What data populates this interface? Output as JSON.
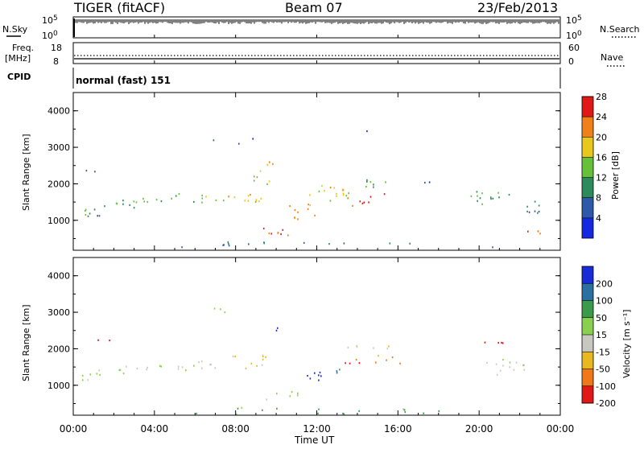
{
  "header": {
    "station": "TIGER (fitACF)",
    "beam": "Beam 07",
    "date": "23/Feb/2013"
  },
  "strip_labels": {
    "nsky": "N.Sky",
    "nsky_top": "10^5",
    "nsky_bottom": "10^0",
    "nsearch": "N.Search",
    "nsearch_top": "10^5",
    "nsearch_bottom": "10^0",
    "freq": "Freq.",
    "freq_unit": "[MHz]",
    "freq_top": "18",
    "freq_bottom": "8",
    "nave": "Nave",
    "nave_top": "60",
    "nave_bottom": "0",
    "cpid": "CPID",
    "cpid_value": "normal (fast) 151"
  },
  "chart_data": [
    {
      "type": "heatmap",
      "name": "power",
      "ylabel": "Slant Range [km]",
      "yticks": [
        "1000",
        "2000",
        "3000",
        "4000"
      ],
      "ylim": [
        180,
        4500
      ],
      "colorbar_label": "Power [dB]",
      "colorbar_ticks": [
        "4",
        "8",
        "12",
        "16",
        "20",
        "24",
        "28"
      ],
      "colorbar_colors": [
        "#1528e0",
        "#2c5aa8",
        "#2e8a5c",
        "#66c03a",
        "#e8c81c",
        "#f0801a",
        "#e01818"
      ],
      "blobs": [
        {
          "t": 1.2,
          "r": 1300,
          "dt": 1.4,
          "dr": 250,
          "v": 10,
          "dens": 0.9
        },
        {
          "t": 3.0,
          "r": 1550,
          "dt": 2.0,
          "dr": 220,
          "v": 12,
          "dens": 0.85
        },
        {
          "t": 5.8,
          "r": 1600,
          "dt": 2.2,
          "dr": 200,
          "v": 14,
          "dens": 0.9
        },
        {
          "t": 8.6,
          "r": 1650,
          "dt": 1.6,
          "dr": 250,
          "v": 18,
          "dens": 0.9
        },
        {
          "t": 9.3,
          "r": 2250,
          "dt": 1.0,
          "dr": 300,
          "v": 16,
          "dens": 0.7
        },
        {
          "t": 9.8,
          "r": 2550,
          "dt": 0.6,
          "dr": 200,
          "v": 20,
          "dens": 0.7
        },
        {
          "t": 10.2,
          "r": 650,
          "dt": 1.4,
          "dr": 200,
          "v": 24,
          "dens": 0.95
        },
        {
          "t": 11.3,
          "r": 1200,
          "dt": 1.0,
          "dr": 400,
          "v": 22,
          "dens": 0.8
        },
        {
          "t": 12.8,
          "r": 1800,
          "dt": 1.8,
          "dr": 350,
          "v": 18,
          "dens": 0.85
        },
        {
          "t": 14.2,
          "r": 1600,
          "dt": 1.2,
          "dr": 250,
          "v": 26,
          "dens": 0.9
        },
        {
          "t": 15.3,
          "r": 2050,
          "dt": 2.2,
          "dr": 150,
          "v": 12,
          "dens": 0.7
        },
        {
          "t": 17.6,
          "r": 2050,
          "dt": 1.0,
          "dr": 120,
          "v": 8,
          "dens": 0.5
        },
        {
          "t": 20.5,
          "r": 1650,
          "dt": 1.6,
          "dr": 350,
          "v": 12,
          "dens": 0.8
        },
        {
          "t": 22.8,
          "r": 1300,
          "dt": 1.2,
          "dr": 350,
          "v": 8,
          "dens": 0.6
        },
        {
          "t": 22.6,
          "r": 700,
          "dt": 1.0,
          "dr": 150,
          "v": 24,
          "dens": 0.9
        },
        {
          "t": 0.8,
          "r": 2400,
          "dt": 0.8,
          "dr": 200,
          "v": 6,
          "dens": 0.5
        },
        {
          "t": 8.0,
          "r": 3200,
          "dt": 3.0,
          "dr": 250,
          "v": 4,
          "dens": 0.12
        },
        {
          "t": 14.5,
          "r": 3500,
          "dt": 1.0,
          "dr": 120,
          "v": 4,
          "dens": 0.3
        },
        {
          "t": 12.0,
          "r": 350,
          "dt": 12.0,
          "dr": 120,
          "v": 8,
          "dens": 0.35
        }
      ]
    },
    {
      "type": "heatmap",
      "name": "velocity",
      "ylabel": "Slant Range [km]",
      "yticks": [
        "1000",
        "2000",
        "3000",
        "4000"
      ],
      "ylim": [
        180,
        4500
      ],
      "colorbar_label": "Velocity [m s⁻¹]",
      "colorbar_ticks": [
        "200",
        "100",
        "50",
        "15",
        "-15",
        "-50",
        "-100",
        "-200"
      ],
      "colorbar_colors": [
        "#1a2cd8",
        "#2a70a0",
        "#3a9a4a",
        "#8ad050",
        "#c8c8c0",
        "#e8b820",
        "#f07818",
        "#e01818"
      ],
      "blobs": [
        {
          "t": 1.2,
          "r": 1300,
          "dt": 1.4,
          "dr": 250,
          "v": 0,
          "dens": 0.6
        },
        {
          "t": 3.0,
          "r": 1500,
          "dt": 2.0,
          "dr": 220,
          "v": -5,
          "dens": 0.7
        },
        {
          "t": 6.0,
          "r": 1550,
          "dt": 2.4,
          "dr": 220,
          "v": -10,
          "dens": 0.75
        },
        {
          "t": 8.8,
          "r": 1700,
          "dt": 1.6,
          "dr": 300,
          "v": -30,
          "dens": 0.7
        },
        {
          "t": 10.0,
          "r": 2550,
          "dt": 0.5,
          "dr": 150,
          "v": 200,
          "dens": 0.8
        },
        {
          "t": 11.8,
          "r": 1300,
          "dt": 0.8,
          "dr": 350,
          "v": 180,
          "dens": 0.8
        },
        {
          "t": 13.1,
          "r": 1400,
          "dt": 0.4,
          "dr": 300,
          "v": 60,
          "dens": 0.8
        },
        {
          "t": 13.8,
          "r": 1600,
          "dt": 0.8,
          "dr": 200,
          "v": -150,
          "dens": 0.85
        },
        {
          "t": 15.3,
          "r": 1700,
          "dt": 1.2,
          "dr": 200,
          "v": -80,
          "dens": 0.7
        },
        {
          "t": 14.5,
          "r": 2050,
          "dt": 3.0,
          "dr": 120,
          "v": -20,
          "dens": 0.6
        },
        {
          "t": 20.8,
          "r": 2200,
          "dt": 0.8,
          "dr": 200,
          "v": -180,
          "dens": 0.8
        },
        {
          "t": 21.5,
          "r": 1500,
          "dt": 2.0,
          "dr": 350,
          "v": 0,
          "dens": 0.6
        },
        {
          "t": 1.5,
          "r": 2300,
          "dt": 0.6,
          "dr": 150,
          "v": -200,
          "dens": 0.6
        },
        {
          "t": 10.5,
          "r": 800,
          "dt": 1.5,
          "dr": 200,
          "v": 5,
          "dens": 0.7
        },
        {
          "t": 12.0,
          "r": 320,
          "dt": 12.0,
          "dr": 150,
          "v": 40,
          "dens": 0.3
        },
        {
          "t": 8.0,
          "r": 3100,
          "dt": 3.5,
          "dr": 300,
          "v": 0,
          "dens": 0.08
        }
      ]
    }
  ],
  "time_axis": {
    "title": "Time UT",
    "ticks": [
      "00:00",
      "04:00",
      "08:00",
      "12:00",
      "16:00",
      "20:00",
      "00:00"
    ]
  }
}
